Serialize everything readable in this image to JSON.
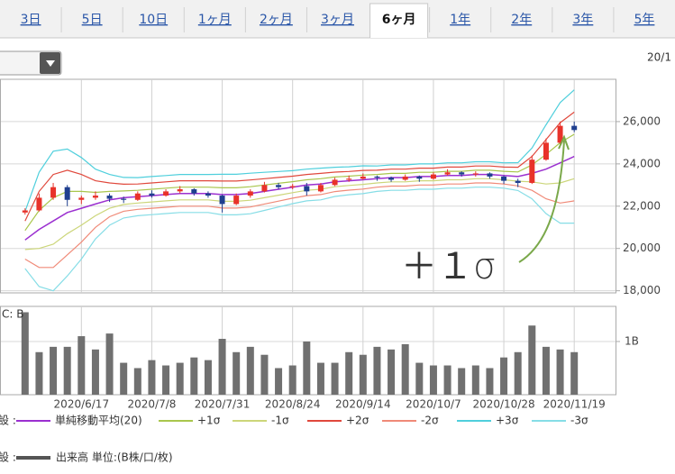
{
  "tabs": [
    "3日",
    "5日",
    "10日",
    "1ヶ月",
    "2ヶ月",
    "3ヶ月",
    "6ヶ月",
    "1年",
    "2年",
    "3年",
    "5年"
  ],
  "selected_tab": "6ヶ月",
  "date_label": "20/1",
  "legend_prefix": "設 :",
  "chart_data": [
    {
      "type": "candlestick",
      "categories": [
        null,
        null,
        null,
        null,
        "2020/6/17",
        null,
        null,
        null,
        null,
        "2020/7/8",
        null,
        null,
        null,
        null,
        "2020/7/31",
        null,
        null,
        null,
        null,
        "2020/8/24",
        null,
        null,
        null,
        null,
        "2020/9/14",
        null,
        null,
        null,
        null,
        "2020/10/7",
        null,
        null,
        null,
        null,
        "2020/10/28",
        null,
        null,
        null,
        null,
        "2020/11/19"
      ],
      "open": [
        21700,
        21800,
        22400,
        22900,
        22300,
        22400,
        22500,
        22350,
        22300,
        22600,
        22500,
        22700,
        22800,
        22600,
        22500,
        22100,
        22500,
        22700,
        23000,
        22900,
        22950,
        22700,
        23000,
        23250,
        23300,
        23400,
        23350,
        23250,
        23400,
        23300,
        23500,
        23600,
        23500,
        23550,
        23400,
        23200,
        23100,
        24200,
        25000,
        25800
      ],
      "high": [
        21900,
        22600,
        23100,
        23000,
        22500,
        22700,
        22600,
        22450,
        22700,
        22750,
        22800,
        22950,
        22850,
        22700,
        22550,
        22600,
        22800,
        23150,
        23100,
        23050,
        23100,
        23100,
        23350,
        23450,
        23550,
        23450,
        23400,
        23500,
        23450,
        23600,
        23750,
        23650,
        23650,
        23600,
        23450,
        23300,
        24400,
        25200,
        26000,
        26000
      ],
      "low": [
        21600,
        21750,
        22300,
        22000,
        22100,
        22300,
        22200,
        22150,
        22250,
        22400,
        22450,
        22600,
        22500,
        22400,
        21700,
        22050,
        22400,
        22650,
        22800,
        22800,
        22500,
        22650,
        22950,
        23150,
        23250,
        23200,
        23150,
        23200,
        23150,
        23250,
        23450,
        23400,
        23400,
        23300,
        23050,
        22900,
        23050,
        24150,
        24900,
        25500
      ],
      "close": [
        21800,
        22400,
        22900,
        22300,
        22400,
        22500,
        22350,
        22300,
        22600,
        22500,
        22700,
        22800,
        22600,
        22500,
        22100,
        22500,
        22700,
        23000,
        22900,
        22950,
        22700,
        23000,
        23250,
        23300,
        23400,
        23350,
        23250,
        23400,
        23300,
        23500,
        23600,
        23500,
        23550,
        23400,
        23200,
        23100,
        24200,
        25000,
        25800,
        25600
      ],
      "up_color": "#e8322a",
      "down_color": "#1f3f8f",
      "series": [
        {
          "name": "単純移動平均(20)",
          "color": "#9b30d0",
          "values": [
            20400,
            20900,
            21300,
            21700,
            21900,
            22100,
            22300,
            22400,
            22450,
            22500,
            22550,
            22600,
            22600,
            22600,
            22550,
            22550,
            22600,
            22700,
            22800,
            22900,
            23000,
            23050,
            23150,
            23200,
            23250,
            23300,
            23350,
            23350,
            23400,
            23400,
            23450,
            23450,
            23500,
            23500,
            23450,
            23400,
            23550,
            23750,
            24050,
            24350
          ]
        },
        {
          "name": "+1σ",
          "color": "#a9c64c",
          "values": [
            20850,
            21800,
            22400,
            22700,
            22700,
            22650,
            22700,
            22720,
            22750,
            22800,
            22850,
            22900,
            22900,
            22900,
            22870,
            22870,
            22920,
            23000,
            23080,
            23160,
            23250,
            23300,
            23380,
            23420,
            23470,
            23500,
            23550,
            23550,
            23600,
            23600,
            23650,
            23650,
            23700,
            23700,
            23650,
            23620,
            23950,
            24450,
            25000,
            25400
          ]
        },
        {
          "name": "-1σ",
          "color": "#ccd67a",
          "values": [
            19950,
            20000,
            20200,
            20700,
            21100,
            21550,
            21900,
            22080,
            22150,
            22200,
            22250,
            22300,
            22300,
            22300,
            22230,
            22230,
            22280,
            22400,
            22520,
            22640,
            22750,
            22800,
            22920,
            22980,
            23030,
            23100,
            23150,
            23150,
            23200,
            23200,
            23250,
            23250,
            23300,
            23300,
            23250,
            23180,
            23150,
            23050,
            23100,
            23300
          ]
        },
        {
          "name": "+2σ",
          "color": "#e0483c",
          "values": [
            21300,
            22700,
            23500,
            23700,
            23500,
            23200,
            23100,
            23040,
            23050,
            23100,
            23150,
            23200,
            23200,
            23200,
            23190,
            23190,
            23240,
            23300,
            23360,
            23420,
            23500,
            23550,
            23610,
            23640,
            23690,
            23700,
            23750,
            23750,
            23800,
            23800,
            23850,
            23850,
            23900,
            23900,
            23850,
            23840,
            24350,
            25150,
            25950,
            26450
          ]
        },
        {
          "name": "-2σ",
          "color": "#f08a78",
          "values": [
            19500,
            19100,
            19100,
            19700,
            20300,
            21000,
            21500,
            21760,
            21850,
            21900,
            21950,
            22000,
            22000,
            22000,
            21910,
            21910,
            21960,
            22100,
            22240,
            22380,
            22500,
            22550,
            22690,
            22760,
            22810,
            22900,
            22950,
            22950,
            23000,
            23000,
            23050,
            23050,
            23100,
            23100,
            23050,
            22960,
            22750,
            22350,
            22150,
            22250
          ]
        },
        {
          "name": "+3σ",
          "color": "#4fcfdc",
          "values": [
            21750,
            23600,
            24600,
            24700,
            24300,
            23750,
            23500,
            23360,
            23350,
            23400,
            23450,
            23500,
            23500,
            23500,
            23510,
            23510,
            23560,
            23600,
            23640,
            23680,
            23750,
            23800,
            23840,
            23860,
            23910,
            23900,
            23950,
            23950,
            24000,
            24000,
            24050,
            24050,
            24100,
            24100,
            24050,
            24060,
            24750,
            25850,
            26900,
            27500
          ]
        },
        {
          "name": "-3σ",
          "color": "#86dde6",
          "values": [
            19050,
            18200,
            18000,
            18700,
            19500,
            20450,
            21100,
            21440,
            21550,
            21600,
            21650,
            21700,
            21700,
            21700,
            21590,
            21590,
            21640,
            21800,
            21960,
            22120,
            22250,
            22300,
            22460,
            22540,
            22590,
            22700,
            22750,
            22750,
            22800,
            22800,
            22850,
            22850,
            22900,
            22900,
            22850,
            22740,
            22350,
            21650,
            21200,
            21200
          ]
        }
      ],
      "ylim": [
        17900,
        28000
      ],
      "yticks": [
        {
          "value": 18000,
          "label": "18,000"
        },
        {
          "value": 20000,
          "label": "20,000"
        },
        {
          "value": 22000,
          "label": "22,000"
        },
        {
          "value": 24000,
          "label": "24,000"
        },
        {
          "value": 26000,
          "label": "26,000"
        }
      ],
      "grid": true,
      "annotation": "＋１σ",
      "annotation_color": "#7aa84a"
    },
    {
      "type": "bar",
      "axis_label": "C: B",
      "series": [
        {
          "name": "出来高 単位:(B株/口/枚)",
          "color": "#707070",
          "values": [
            1.55,
            0.8,
            0.9,
            0.9,
            1.1,
            0.85,
            1.15,
            0.6,
            0.5,
            0.65,
            0.55,
            0.6,
            0.7,
            0.65,
            1.05,
            0.8,
            0.9,
            0.75,
            0.5,
            0.55,
            1.0,
            0.6,
            0.6,
            0.8,
            0.75,
            0.9,
            0.85,
            0.95,
            0.6,
            0.55,
            0.55,
            0.5,
            0.55,
            0.5,
            0.7,
            0.8,
            1.3,
            0.9,
            0.85,
            0.8
          ]
        }
      ],
      "ylim": [
        0,
        1.66
      ],
      "yticks": [
        {
          "value": 1,
          "label": "1B"
        }
      ],
      "grid": true
    }
  ]
}
